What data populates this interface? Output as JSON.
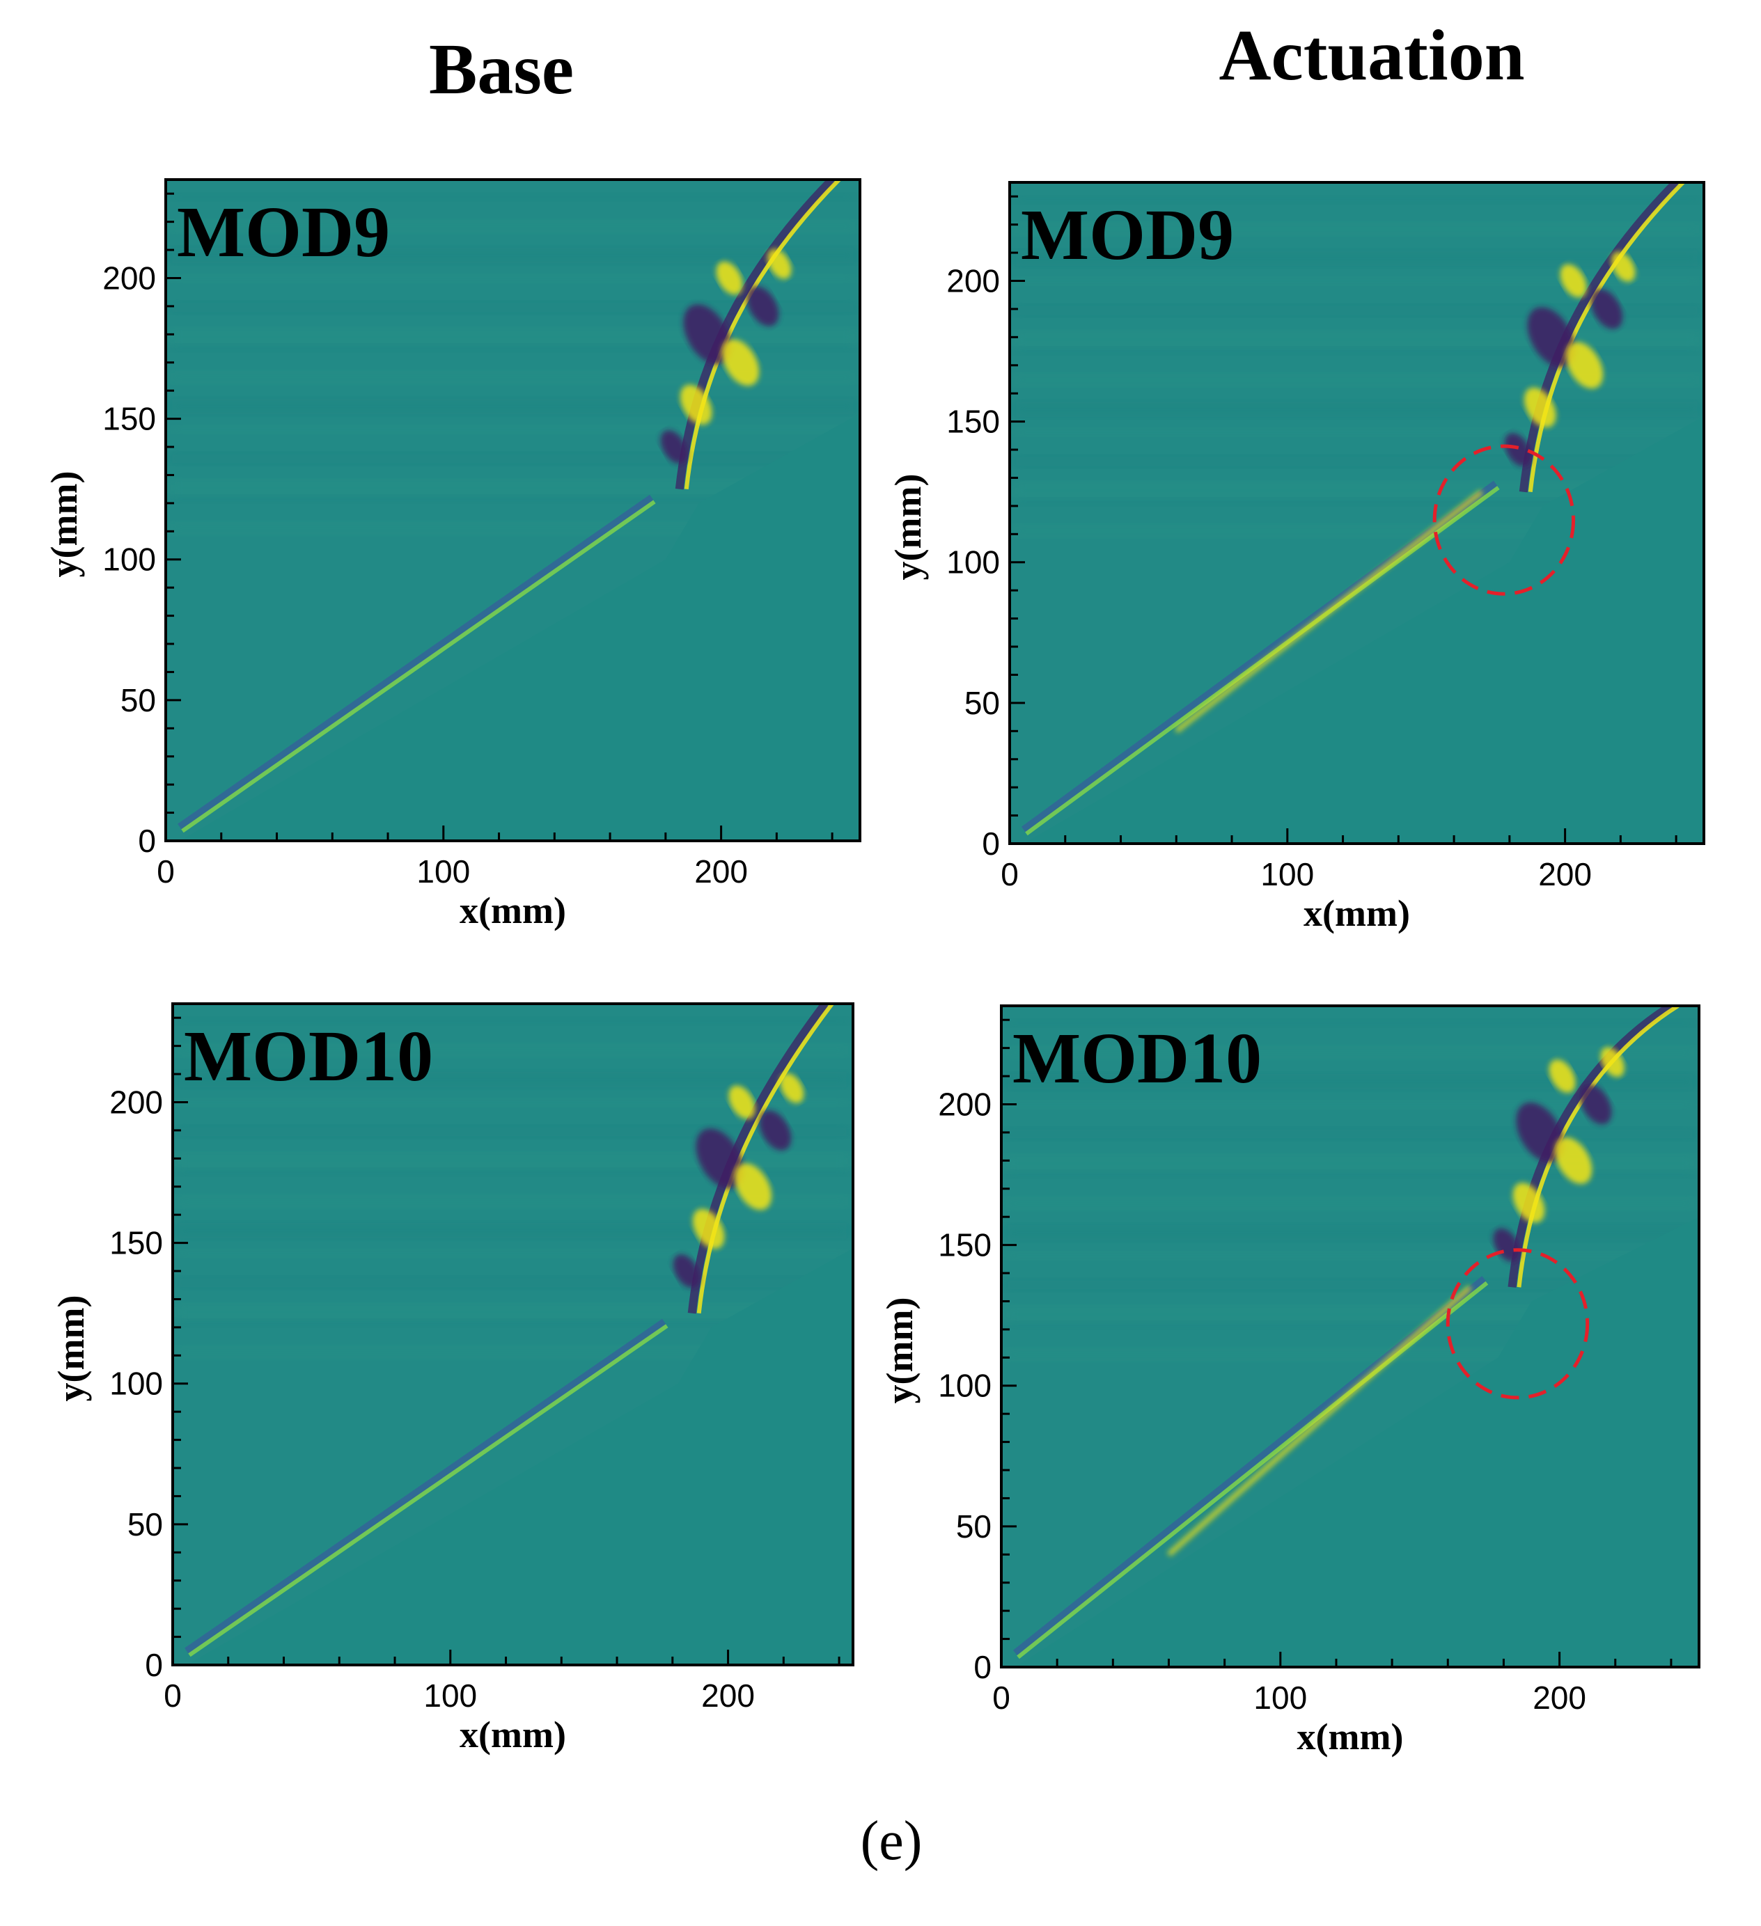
{
  "column_titles": {
    "left": "Base",
    "right": "Actuation"
  },
  "figure_label": "(e)",
  "colors": {
    "background": "#1e8c84",
    "plot_bg": "#228a86",
    "shock_bright": "#f4e519",
    "shock_light": "#7fd34e",
    "shock_dark": "#3f1b63",
    "shock_blue": "#35609b",
    "circle": "#e4202a"
  },
  "chart_data": [
    {
      "type": "heatmap",
      "panel": "Base",
      "mode_label": "MOD9",
      "xlabel": "x(mm)",
      "ylabel": "y(mm)",
      "xlim": [
        0,
        250
      ],
      "ylim": [
        0,
        235
      ],
      "xticks": [
        "0",
        "100",
        "200"
      ],
      "yticks": [
        "0",
        "50",
        "100",
        "150",
        "200"
      ],
      "highlight_circle": null
    },
    {
      "type": "heatmap",
      "panel": "Actuation",
      "mode_label": "MOD9",
      "xlabel": "x(mm)",
      "ylabel": "y(mm)",
      "xlim": [
        0,
        250
      ],
      "ylim": [
        0,
        235
      ],
      "xticks": [
        "0",
        "100",
        "200"
      ],
      "yticks": [
        "0",
        "50",
        "100",
        "150",
        "200"
      ],
      "highlight_circle": {
        "x": 178,
        "y": 115,
        "r": 25
      }
    },
    {
      "type": "heatmap",
      "panel": "Base",
      "mode_label": "MOD10",
      "xlabel": "x(mm)",
      "ylabel": "y(mm)",
      "xlim": [
        0,
        245
      ],
      "ylim": [
        0,
        235
      ],
      "xticks": [
        "0",
        "100",
        "200"
      ],
      "yticks": [
        "0",
        "50",
        "100",
        "150",
        "200"
      ],
      "highlight_circle": null
    },
    {
      "type": "heatmap",
      "panel": "Actuation",
      "mode_label": "MOD10",
      "xlabel": "x(mm)",
      "ylabel": "y(mm)",
      "xlim": [
        0,
        250
      ],
      "ylim": [
        0,
        235
      ],
      "xticks": [
        "0",
        "100",
        "200"
      ],
      "yticks": [
        "0",
        "50",
        "100",
        "150",
        "200"
      ],
      "highlight_circle": {
        "x": 185,
        "y": 122,
        "r": 25
      }
    }
  ]
}
